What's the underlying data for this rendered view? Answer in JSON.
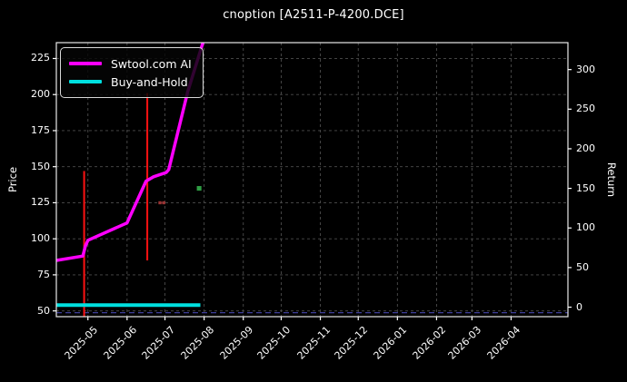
{
  "chart_data": {
    "type": "line",
    "title": "cnoption [A2511-P-4200.DCE]",
    "x_axis": {
      "ticks": [
        "2025-05",
        "2025-06",
        "2025-07",
        "2025-08",
        "2025-09",
        "2025-10",
        "2025-11",
        "2025-12",
        "2026-01",
        "2026-02",
        "2026-03",
        "2026-04"
      ],
      "range": [
        "2025-04-06",
        "2026-05-16"
      ],
      "tick_rotation_deg": -45
    },
    "y_left": {
      "label": "Price",
      "ticks": [
        225,
        200,
        175,
        150,
        125,
        100,
        75,
        50
      ],
      "range": [
        46,
        236
      ]
    },
    "y_right": {
      "label": "Return",
      "ticks": [
        300,
        250,
        200,
        150,
        100,
        50,
        0
      ],
      "range": [
        -12,
        334
      ]
    },
    "grid": true,
    "legend_position": "upper-left",
    "series": [
      {
        "name": "Swtool.com AI",
        "axis": "left",
        "color": "#ff00ff",
        "width": 3.5,
        "points": [
          [
            "2025-04-06",
            85
          ],
          [
            "2025-04-27",
            88
          ],
          [
            "2025-04-29",
            95
          ],
          [
            "2025-05-01",
            99
          ],
          [
            "2025-06-01",
            111
          ],
          [
            "2025-06-16",
            140
          ],
          [
            "2025-06-22",
            143
          ],
          [
            "2025-07-02",
            146
          ],
          [
            "2025-07-04",
            148
          ],
          [
            "2025-07-19",
            202
          ],
          [
            "2025-07-31",
            236
          ]
        ]
      },
      {
        "name": "Buy-and-Hold",
        "axis": "left",
        "color": "#00e0e0",
        "width": 4,
        "points": [
          [
            "2025-04-06",
            54
          ],
          [
            "2025-07-29",
            54
          ]
        ]
      }
    ],
    "vertical_bars": [
      {
        "date": "2025-04-28",
        "from": 46,
        "to": 147,
        "color": "#ff1111",
        "width": 2
      },
      {
        "date": "2025-06-17",
        "from": 85,
        "to": 201,
        "color": "#ff1111",
        "width": 2
      }
    ],
    "markers": [
      {
        "date": "2025-06-27",
        "axis": "left",
        "value": 125,
        "color": "#993333",
        "size": 2
      },
      {
        "date": "2025-06-30",
        "axis": "left",
        "value": 125,
        "color": "#993333",
        "size": 2
      },
      {
        "date": "2025-07-28",
        "axis": "left",
        "value": 135,
        "color": "#2f9e44",
        "size": 3
      }
    ],
    "reference_line": {
      "axis": "right",
      "value": -7,
      "color": "#3d3d99",
      "dash": "6,4"
    },
    "style": {
      "background": "#000000",
      "foreground": "#ffffff",
      "grid_color": "#4d4d4d",
      "frame_color": "#e8e8e8"
    }
  }
}
